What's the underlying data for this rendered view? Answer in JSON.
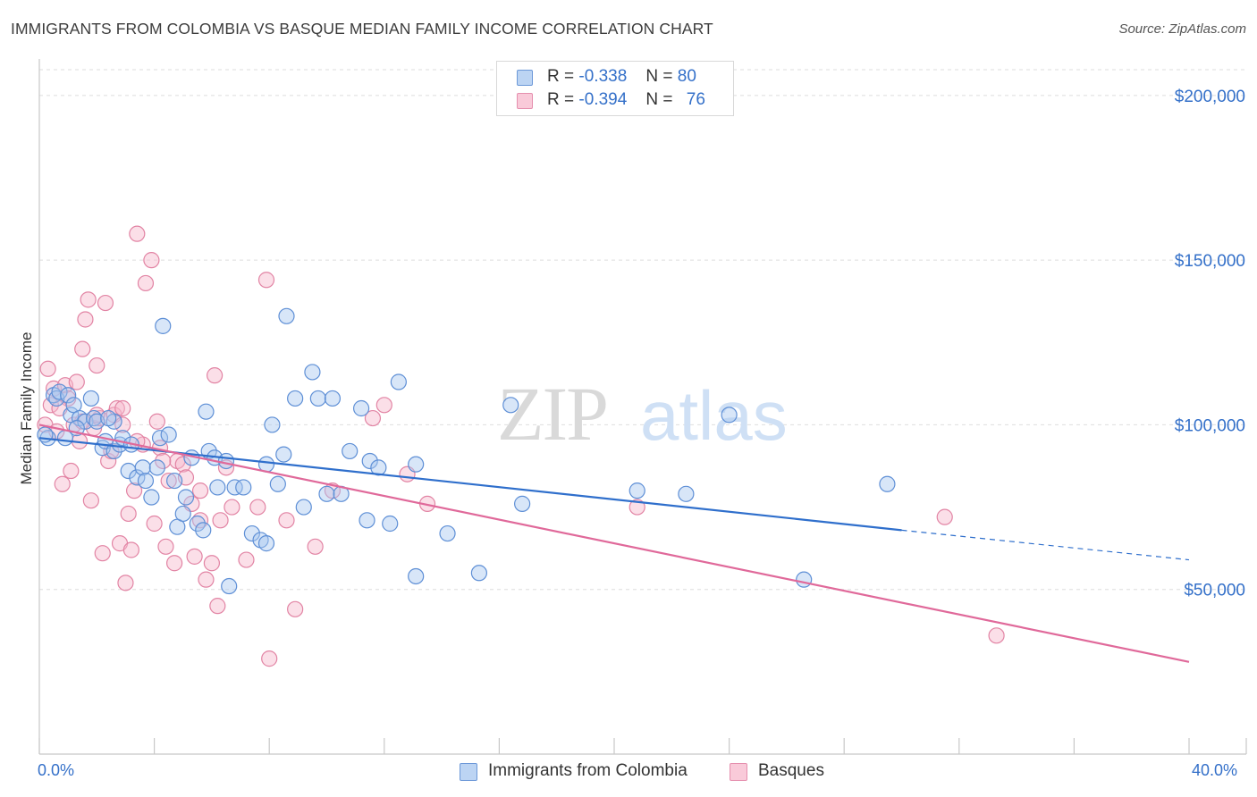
{
  "chart_data": {
    "type": "scatter",
    "title": "IMMIGRANTS FROM COLOMBIA VS BASQUE MEDIAN FAMILY INCOME CORRELATION CHART",
    "source": "Source: ZipAtlas.com",
    "xlabel": "",
    "ylabel": "Median Family Income",
    "xlim": [
      0,
      40
    ],
    "ylim": [
      0,
      210000
    ],
    "x_tick_labels": [
      "0.0%",
      "40.0%"
    ],
    "y_tick_labels": [
      "$50,000",
      "$100,000",
      "$150,000",
      "$200,000"
    ],
    "y_tick_values": [
      50000,
      100000,
      150000,
      200000
    ],
    "watermark": "ZIPatlas",
    "legend": {
      "series1": {
        "r_label": "R =",
        "r": "-0.338",
        "n_label": "N =",
        "n": "80"
      },
      "series2": {
        "r_label": "R =",
        "r": "-0.394",
        "n_label": "N =",
        "n": "76"
      }
    },
    "colors": {
      "series1_fill": "#a9c8f0",
      "series1_stroke": "#5e8fd6",
      "series1_line": "#2f6fcc",
      "series2_fill": "#f6b9cc",
      "series2_stroke": "#e284a4",
      "series2_line": "#e0699a",
      "axis_label": "#3470c9",
      "grid": "#dedede"
    },
    "series": [
      {
        "name": "Immigrants from Colombia",
        "trend": {
          "x": [
            0,
            30
          ],
          "y": [
            96000,
            68000
          ]
        },
        "trend_dashed": {
          "x": [
            30,
            40
          ],
          "y": [
            68000,
            59000
          ]
        },
        "points": [
          [
            0.3,
            96
          ],
          [
            0.5,
            109
          ],
          [
            0.6,
            108
          ],
          [
            0.7,
            110
          ],
          [
            0.9,
            96
          ],
          [
            1.0,
            109
          ],
          [
            1.1,
            103
          ],
          [
            1.2,
            106
          ],
          [
            1.4,
            102
          ],
          [
            1.6,
            101
          ],
          [
            1.8,
            108
          ],
          [
            1.9,
            102
          ],
          [
            2.0,
            101
          ],
          [
            2.2,
            93
          ],
          [
            2.3,
            95
          ],
          [
            2.6,
            101
          ],
          [
            2.6,
            92
          ],
          [
            2.8,
            94
          ],
          [
            2.9,
            96
          ],
          [
            3.1,
            86
          ],
          [
            3.2,
            94
          ],
          [
            3.4,
            84
          ],
          [
            3.6,
            87
          ],
          [
            3.7,
            83
          ],
          [
            3.9,
            78
          ],
          [
            4.1,
            87
          ],
          [
            4.2,
            96
          ],
          [
            4.3,
            130
          ],
          [
            4.5,
            97
          ],
          [
            4.7,
            83
          ],
          [
            4.8,
            69
          ],
          [
            5.0,
            73
          ],
          [
            5.1,
            78
          ],
          [
            5.3,
            90
          ],
          [
            5.5,
            70
          ],
          [
            5.7,
            68
          ],
          [
            5.8,
            104
          ],
          [
            5.9,
            92
          ],
          [
            6.1,
            90
          ],
          [
            6.2,
            81
          ],
          [
            6.5,
            89
          ],
          [
            6.6,
            51
          ],
          [
            6.8,
            81
          ],
          [
            7.1,
            81
          ],
          [
            7.4,
            67
          ],
          [
            7.7,
            65
          ],
          [
            7.9,
            64
          ],
          [
            7.9,
            88
          ],
          [
            8.1,
            100
          ],
          [
            8.3,
            82
          ],
          [
            8.5,
            91
          ],
          [
            8.6,
            133
          ],
          [
            8.9,
            108
          ],
          [
            9.2,
            75
          ],
          [
            9.5,
            116
          ],
          [
            9.7,
            108
          ],
          [
            10.0,
            79
          ],
          [
            10.2,
            108
          ],
          [
            10.5,
            79
          ],
          [
            10.8,
            92
          ],
          [
            11.2,
            105
          ],
          [
            11.4,
            71
          ],
          [
            11.5,
            89
          ],
          [
            11.8,
            87
          ],
          [
            12.2,
            70
          ],
          [
            12.5,
            113
          ],
          [
            13.1,
            88
          ],
          [
            13.1,
            54
          ],
          [
            14.2,
            67
          ],
          [
            15.3,
            55
          ],
          [
            16.4,
            106
          ],
          [
            16.8,
            76
          ],
          [
            20.8,
            80
          ],
          [
            22.5,
            79
          ],
          [
            24.0,
            103
          ],
          [
            26.6,
            53
          ],
          [
            29.5,
            82
          ],
          [
            0.2,
            97
          ],
          [
            1.3,
            99
          ],
          [
            2.4,
            102
          ]
        ]
      },
      {
        "name": "Basques",
        "trend": {
          "x": [
            0,
            40
          ],
          "y": [
            100000,
            28000
          ]
        },
        "points": [
          [
            0.2,
            100
          ],
          [
            0.3,
            117
          ],
          [
            0.4,
            106
          ],
          [
            0.5,
            111
          ],
          [
            0.6,
            98
          ],
          [
            0.8,
            82
          ],
          [
            0.9,
            112
          ],
          [
            1.0,
            108
          ],
          [
            1.1,
            86
          ],
          [
            1.2,
            100
          ],
          [
            1.3,
            113
          ],
          [
            1.4,
            95
          ],
          [
            1.5,
            123
          ],
          [
            1.6,
            132
          ],
          [
            1.7,
            138
          ],
          [
            1.8,
            77
          ],
          [
            1.9,
            99
          ],
          [
            2.0,
            118
          ],
          [
            2.1,
            102
          ],
          [
            2.2,
            61
          ],
          [
            2.3,
            137
          ],
          [
            2.4,
            89
          ],
          [
            2.5,
            92
          ],
          [
            2.6,
            103
          ],
          [
            2.7,
            105
          ],
          [
            2.8,
            64
          ],
          [
            2.9,
            105
          ],
          [
            3.0,
            52
          ],
          [
            3.1,
            73
          ],
          [
            3.2,
            62
          ],
          [
            3.3,
            80
          ],
          [
            3.4,
            158
          ],
          [
            3.6,
            94
          ],
          [
            3.7,
            143
          ],
          [
            3.9,
            150
          ],
          [
            4.0,
            70
          ],
          [
            4.1,
            101
          ],
          [
            4.2,
            93
          ],
          [
            4.4,
            63
          ],
          [
            4.5,
            83
          ],
          [
            4.7,
            58
          ],
          [
            4.8,
            89
          ],
          [
            5.0,
            88
          ],
          [
            5.1,
            84
          ],
          [
            5.3,
            76
          ],
          [
            5.4,
            60
          ],
          [
            5.6,
            71
          ],
          [
            5.8,
            53
          ],
          [
            6.0,
            58
          ],
          [
            6.1,
            115
          ],
          [
            6.2,
            45
          ],
          [
            6.3,
            71
          ],
          [
            6.5,
            87
          ],
          [
            6.7,
            75
          ],
          [
            7.2,
            59
          ],
          [
            7.6,
            75
          ],
          [
            7.9,
            144
          ],
          [
            8.0,
            29
          ],
          [
            8.6,
            71
          ],
          [
            8.9,
            44
          ],
          [
            9.6,
            63
          ],
          [
            10.2,
            80
          ],
          [
            11.6,
            102
          ],
          [
            12.0,
            106
          ],
          [
            12.8,
            85
          ],
          [
            13.5,
            76
          ],
          [
            20.8,
            75
          ],
          [
            31.5,
            72
          ],
          [
            33.3,
            36
          ],
          [
            0.7,
            105
          ],
          [
            1.5,
            101
          ],
          [
            2.0,
            103
          ],
          [
            2.9,
            100
          ],
          [
            3.4,
            95
          ],
          [
            4.3,
            89
          ],
          [
            5.6,
            80
          ]
        ]
      }
    ]
  },
  "bottom_legend": {
    "series1_label": "Immigrants from Colombia",
    "series2_label": "Basques"
  }
}
